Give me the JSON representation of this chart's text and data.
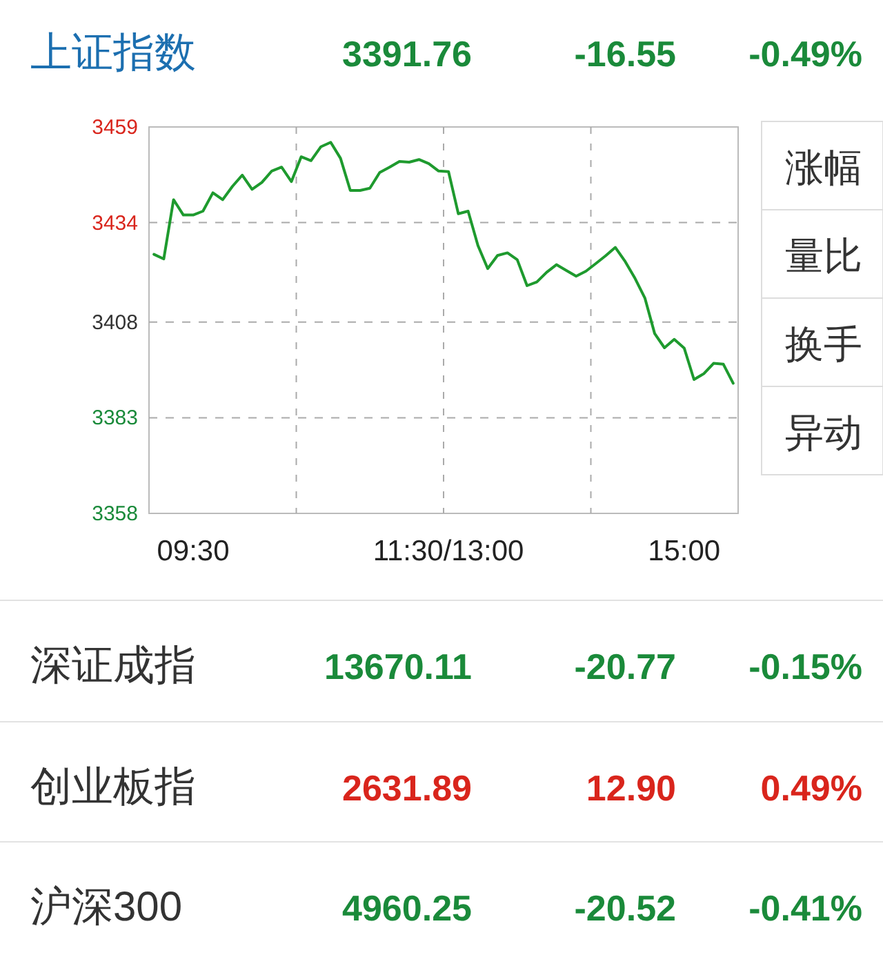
{
  "chart_data": [
    {
      "type": "line",
      "color": "#1e9a2e",
      "ylim": [
        3358,
        3459
      ],
      "grid": true,
      "categories": [
        null,
        null,
        null,
        null,
        "09:30",
        null,
        null,
        null,
        null,
        null,
        null,
        null,
        null,
        null,
        null,
        null,
        null,
        null,
        null,
        null,
        null,
        null,
        null,
        null,
        null,
        null,
        null,
        null,
        null,
        null,
        "11:30/13:00",
        null,
        null,
        null,
        null,
        null,
        null,
        null,
        null,
        null,
        null,
        null,
        null,
        null,
        null,
        null,
        null,
        null,
        null,
        null,
        null,
        null,
        null,
        null,
        "15:00",
        null,
        null,
        null,
        null,
        null
      ],
      "yticks": [
        3358,
        3383,
        3408,
        3434,
        3459
      ],
      "values": [
        3425.7,
        3424.5,
        3440,
        3436,
        3436,
        3437,
        3441.8,
        3440,
        3443.5,
        3446.4,
        3442.7,
        3444.5,
        3447.5,
        3448.5,
        3444.7,
        3451.2,
        3450.2,
        3453.8,
        3455,
        3450.8,
        3442.4,
        3442.4,
        3443,
        3447.1,
        3448.5,
        3450,
        3449.8,
        3450.5,
        3449.4,
        3447.5,
        3447.3,
        3436.3,
        3437,
        3428,
        3422,
        3425.4,
        3426.1,
        3424.3,
        3417.5,
        3418.5,
        3421,
        3423,
        3421.5,
        3420,
        3421.3,
        3423.3,
        3425.3,
        3427.5,
        3423.8,
        3419.4,
        3414.3,
        3405,
        3401.3,
        3403.5,
        3401.2,
        3393,
        3394.5,
        3397.2,
        3397,
        3392
      ]
    },
    {
      "type": "other",
      "annotations": [
        "涨幅",
        "量比",
        "换手",
        "异动"
      ]
    },
    {
      "type": "other",
      "categories": [
        "上证指数",
        "深证成指",
        "创业板指",
        "沪深300"
      ],
      "series": [
        {
          "values": [
            3391.76,
            13670.11,
            2631.89,
            4960.25
          ],
          "value_labels": [
            "3391.76",
            "13670.11",
            "2631.89",
            "4960.25"
          ]
        },
        {
          "values": [
            -16.55,
            -20.77,
            12.9,
            -20.52
          ],
          "value_labels": [
            "-16.55",
            "-20.77",
            "12.90",
            "-20.52"
          ]
        },
        {
          "values": [
            -0.49,
            -0.15,
            0.49,
            -0.41
          ],
          "value_labels": [
            "-0.49%",
            "-0.15%",
            "0.49%",
            "-0.41%"
          ]
        }
      ]
    }
  ]
}
